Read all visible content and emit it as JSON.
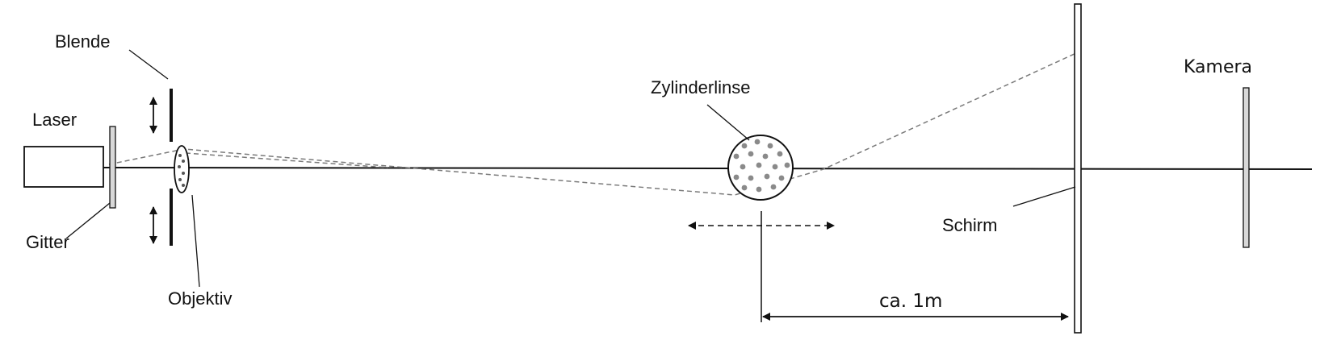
{
  "labels": {
    "laser": "Laser",
    "gitter": "Gitter",
    "blende": "Blende",
    "objektiv": "Objektiv",
    "zylinderlinse": "Zylinderlinse",
    "schirm": "Schirm",
    "kamera": "Kamera",
    "distance": "ca. 1m"
  },
  "colors": {
    "line": "#111111",
    "dashed": "#7a7a7a",
    "component_fill": "#d8d8d8",
    "particle": "#8a8a8a"
  }
}
